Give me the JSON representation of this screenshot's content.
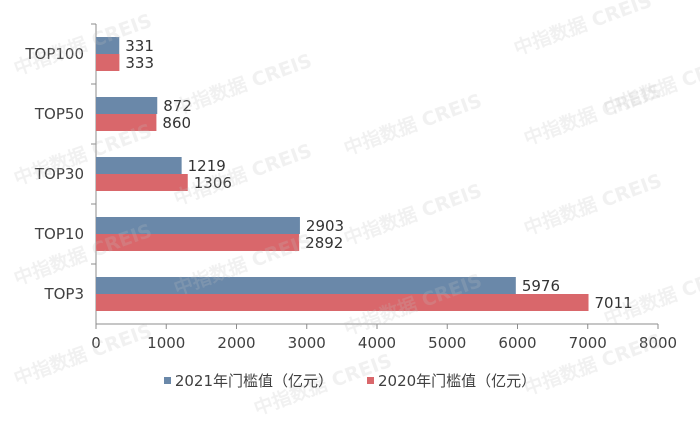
{
  "chart_data": {
    "type": "bar",
    "orientation": "horizontal",
    "categories": [
      "TOP100",
      "TOP50",
      "TOP30",
      "TOP10",
      "TOP3"
    ],
    "series": [
      {
        "name": "2021年门槛值（亿元）",
        "values": [
          331,
          872,
          1219,
          2903,
          5976
        ],
        "color": "#6a88a9"
      },
      {
        "name": "2020年门槛值（亿元）",
        "values": [
          333,
          860,
          1306,
          2892,
          7011
        ],
        "color": "#d9676b"
      }
    ],
    "xlim": [
      0,
      8000
    ],
    "xticks": [
      0,
      1000,
      2000,
      3000,
      4000,
      5000,
      6000,
      7000,
      8000
    ],
    "grid": false,
    "legend_position": "bottom"
  },
  "watermark": "中指数据 CREIS"
}
